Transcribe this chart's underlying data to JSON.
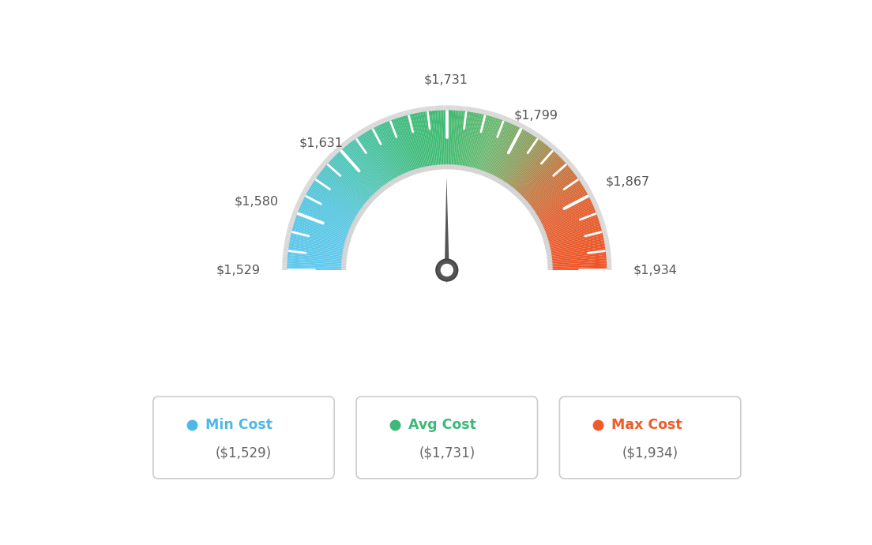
{
  "min_val": 1529,
  "max_val": 1934,
  "avg_val": 1731,
  "tick_label_values": [
    1529,
    1580,
    1631,
    1731,
    1799,
    1867,
    1934
  ],
  "tick_label_texts": [
    "$1,529",
    "$1,580",
    "$1,631",
    "$1,731",
    "$1,799",
    "$1,867",
    "$1,934"
  ],
  "legend_labels": [
    "Min Cost",
    "Avg Cost",
    "Max Cost"
  ],
  "legend_values": [
    "($1,529)",
    "($1,731)",
    "($1,934)"
  ],
  "legend_colors": [
    "#4db8e8",
    "#3cb878",
    "#f05a28"
  ],
  "bg_color": "#ffffff",
  "color_stops": [
    [
      0.0,
      "#5ec8ef"
    ],
    [
      0.15,
      "#55c5e0"
    ],
    [
      0.28,
      "#4dc4b0"
    ],
    [
      0.42,
      "#3dba78"
    ],
    [
      0.5,
      "#3dba6e"
    ],
    [
      0.6,
      "#6ab870"
    ],
    [
      0.68,
      "#8c9e5e"
    ],
    [
      0.76,
      "#c07840"
    ],
    [
      0.85,
      "#e06030"
    ],
    [
      1.0,
      "#f05020"
    ]
  ]
}
